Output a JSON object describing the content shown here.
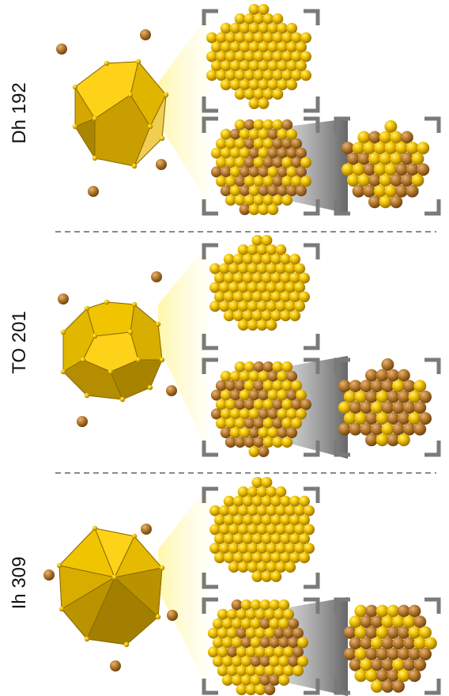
{
  "panels": [
    {
      "label": "Dh 192",
      "polyhedron": "decahedron"
    },
    {
      "label": "TO 201",
      "polyhedron": "truncated-octahedron"
    },
    {
      "label": "Ih 309",
      "polyhedron": "icosahedron"
    }
  ],
  "colors": {
    "gold": "#e6b800",
    "gold_light": "#ffd21a",
    "gold_dark": "#b08a00",
    "copper": "#b57a2c",
    "bracket": "#7a7a7a",
    "divider": "#8a8a8a",
    "shadow": "#555555",
    "highlight": "#fff6a8"
  }
}
